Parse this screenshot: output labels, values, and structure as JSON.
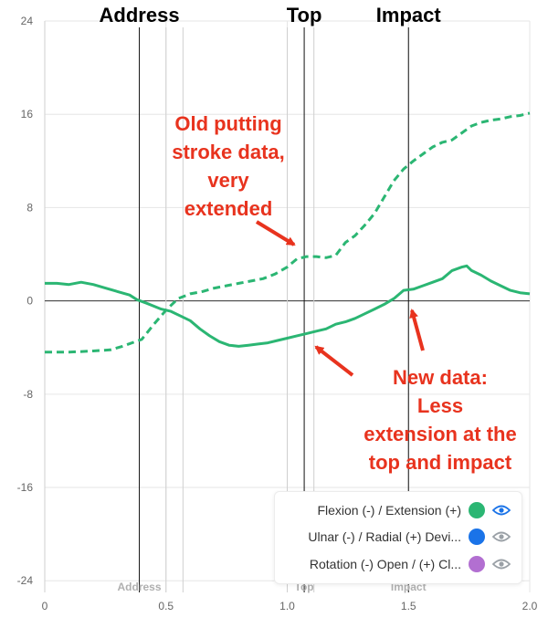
{
  "chart_data": {
    "type": "line",
    "title": "",
    "xlabel": "",
    "ylabel": "",
    "xlim": [
      0,
      2.0
    ],
    "ylim": [
      -25,
      24
    ],
    "x_ticks": [
      "0",
      "0.5",
      "1.0",
      "1.5",
      "2.0"
    ],
    "y_ticks": [
      "24",
      "16",
      "8",
      "0",
      "-8",
      "-16",
      "-24"
    ],
    "grid": true,
    "series": [
      {
        "name": "Flexion (-) / Extension (+)",
        "style": "solid",
        "color": "#2bb673",
        "points": [
          [
            0,
            1.5
          ],
          [
            0.05,
            1.5
          ],
          [
            0.1,
            1.4
          ],
          [
            0.15,
            1.6
          ],
          [
            0.2,
            1.4
          ],
          [
            0.25,
            1.1
          ],
          [
            0.3,
            0.8
          ],
          [
            0.35,
            0.5
          ],
          [
            0.38,
            0.1
          ],
          [
            0.42,
            -0.2
          ],
          [
            0.48,
            -0.7
          ],
          [
            0.52,
            -0.9
          ],
          [
            0.56,
            -1.3
          ],
          [
            0.6,
            -1.7
          ],
          [
            0.64,
            -2.4
          ],
          [
            0.68,
            -3.0
          ],
          [
            0.72,
            -3.5
          ],
          [
            0.76,
            -3.8
          ],
          [
            0.8,
            -3.9
          ],
          [
            0.84,
            -3.8
          ],
          [
            0.88,
            -3.7
          ],
          [
            0.92,
            -3.6
          ],
          [
            0.96,
            -3.4
          ],
          [
            1.0,
            -3.2
          ],
          [
            1.04,
            -3.0
          ],
          [
            1.08,
            -2.8
          ],
          [
            1.12,
            -2.6
          ],
          [
            1.16,
            -2.4
          ],
          [
            1.2,
            -2.0
          ],
          [
            1.24,
            -1.8
          ],
          [
            1.28,
            -1.5
          ],
          [
            1.32,
            -1.1
          ],
          [
            1.36,
            -0.7
          ],
          [
            1.4,
            -0.3
          ],
          [
            1.44,
            0.2
          ],
          [
            1.48,
            0.9
          ],
          [
            1.52,
            1.0
          ],
          [
            1.56,
            1.3
          ],
          [
            1.6,
            1.6
          ],
          [
            1.64,
            1.9
          ],
          [
            1.68,
            2.6
          ],
          [
            1.72,
            2.9
          ],
          [
            1.74,
            3.0
          ],
          [
            1.76,
            2.6
          ],
          [
            1.8,
            2.2
          ],
          [
            1.84,
            1.7
          ],
          [
            1.88,
            1.3
          ],
          [
            1.92,
            0.9
          ],
          [
            1.96,
            0.7
          ],
          [
            2.0,
            0.6
          ]
        ]
      },
      {
        "name": "Old putting stroke data",
        "style": "dashed",
        "color": "#2bb673",
        "points": [
          [
            0,
            -4.4
          ],
          [
            0.1,
            -4.4
          ],
          [
            0.2,
            -4.3
          ],
          [
            0.27,
            -4.2
          ],
          [
            0.32,
            -3.9
          ],
          [
            0.4,
            -3.3
          ],
          [
            0.45,
            -2.0
          ],
          [
            0.5,
            -0.8
          ],
          [
            0.55,
            0.2
          ],
          [
            0.6,
            0.6
          ],
          [
            0.65,
            0.8
          ],
          [
            0.7,
            1.1
          ],
          [
            0.75,
            1.3
          ],
          [
            0.8,
            1.5
          ],
          [
            0.85,
            1.7
          ],
          [
            0.9,
            1.9
          ],
          [
            0.95,
            2.3
          ],
          [
            1.0,
            2.9
          ],
          [
            1.04,
            3.6
          ],
          [
            1.08,
            3.8
          ],
          [
            1.12,
            3.8
          ],
          [
            1.16,
            3.7
          ],
          [
            1.2,
            3.9
          ],
          [
            1.24,
            5.0
          ],
          [
            1.28,
            5.6
          ],
          [
            1.32,
            6.5
          ],
          [
            1.36,
            7.5
          ],
          [
            1.4,
            8.9
          ],
          [
            1.44,
            10.3
          ],
          [
            1.48,
            11.3
          ],
          [
            1.52,
            12.0
          ],
          [
            1.56,
            12.6
          ],
          [
            1.6,
            13.2
          ],
          [
            1.64,
            13.6
          ],
          [
            1.68,
            13.8
          ],
          [
            1.72,
            14.4
          ],
          [
            1.76,
            15.0
          ],
          [
            1.8,
            15.3
          ],
          [
            1.84,
            15.5
          ],
          [
            1.88,
            15.6
          ],
          [
            1.92,
            15.8
          ],
          [
            1.96,
            15.9
          ],
          [
            2.0,
            16.1
          ]
        ]
      }
    ],
    "markers": [
      {
        "label": "Address",
        "x": 0.39
      },
      {
        "label": "Top",
        "x": 1.07
      },
      {
        "label": "Impact",
        "x": 1.5
      }
    ],
    "guide_lines_x": [
      0.5,
      0.57,
      1.0,
      1.11
    ],
    "annotations": [
      {
        "lines": [
          "Old putting",
          "stroke data,",
          "very",
          "extended"
        ],
        "color": "#e8331e"
      },
      {
        "lines": [
          "New data:",
          "Less",
          "extension at the",
          "top and impact"
        ],
        "color": "#e8331e"
      }
    ]
  },
  "legend": {
    "items": [
      {
        "label": "Flexion (-) / Extension (+)",
        "color": "#2bb673",
        "eye_color": "#1a73e8",
        "icon": "eye-icon"
      },
      {
        "label": "Ulnar (-) / Radial (+) Devi...",
        "color": "#1a73e8",
        "eye_color": "#9aa0a6",
        "icon": "eye-icon"
      },
      {
        "label": "Rotation (-) Open / (+) Cl...",
        "color": "#b26fd1",
        "eye_color": "#9aa0a6",
        "icon": "eye-icon"
      }
    ]
  }
}
